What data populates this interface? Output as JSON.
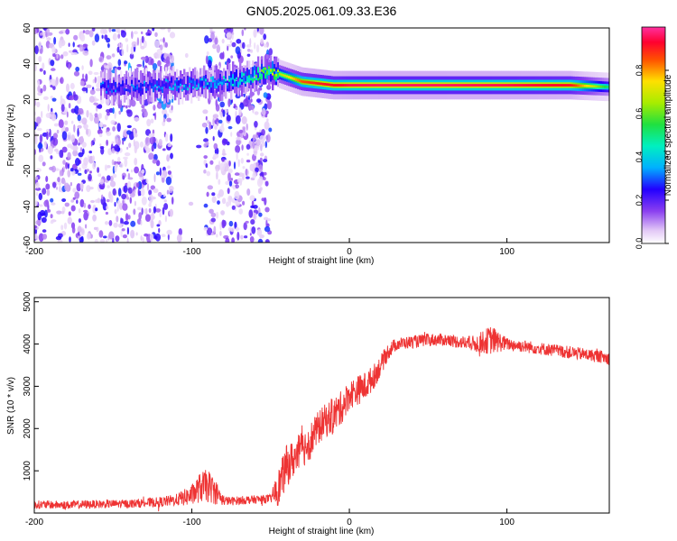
{
  "title": "GN05.2025.061.09.33.E36",
  "chart_data": [
    {
      "type": "heatmap",
      "xlabel": "Height of straight line (km)",
      "ylabel": "Frequency (Hz)",
      "xlim": [
        -200,
        165
      ],
      "ylim": [
        -60,
        60
      ],
      "x_ticks": [
        "-200",
        "-100",
        "0",
        "100"
      ],
      "y_ticks": [
        "-60",
        "-40",
        "-20",
        "0",
        "20",
        "40",
        "60"
      ],
      "colorbar": {
        "label": "Normalized spectral amplitude",
        "ticks": [
          "0.0",
          "0.2",
          "0.4",
          "0.6",
          "0.8"
        ],
        "range": [
          0,
          1
        ]
      },
      "ridge": {
        "x": [
          -155,
          -140,
          -120,
          -100,
          -80,
          -65,
          -55,
          -50,
          -40,
          -30,
          -20,
          -10,
          0,
          20,
          60,
          100,
          140,
          165
        ],
        "y": [
          27,
          27,
          28,
          28,
          30,
          32,
          35,
          36,
          33,
          30,
          29,
          28,
          28,
          28,
          28,
          28,
          28,
          27
        ],
        "amplitude": [
          0.22,
          0.24,
          0.26,
          0.3,
          0.34,
          0.4,
          0.55,
          0.6,
          0.7,
          0.85,
          0.9,
          0.92,
          0.95,
          0.96,
          0.96,
          0.95,
          0.92,
          0.5
        ]
      }
    },
    {
      "type": "line",
      "xlabel": "Height of straight line (km)",
      "ylabel": "SNR (10 * v/v)",
      "xlim": [
        -200,
        165
      ],
      "ylim": [
        0,
        5100
      ],
      "x_ticks": [
        "-200",
        "-100",
        "0",
        "100"
      ],
      "y_ticks": [
        "1000",
        "2000",
        "3000",
        "4000",
        "5000"
      ],
      "series": [
        {
          "color": "#ee3333",
          "x": [
            -200,
            -180,
            -160,
            -140,
            -120,
            -110,
            -100,
            -95,
            -90,
            -85,
            -80,
            -75,
            -70,
            -60,
            -55,
            -50,
            -45,
            -40,
            -35,
            -30,
            -25,
            -20,
            -15,
            -10,
            -5,
            0,
            5,
            10,
            15,
            20,
            25,
            30,
            40,
            50,
            60,
            70,
            80,
            90,
            100,
            110,
            120,
            130,
            140,
            150,
            160,
            165
          ],
          "y": [
            200,
            190,
            210,
            220,
            260,
            310,
            420,
            600,
            650,
            500,
            300,
            280,
            300,
            320,
            330,
            340,
            600,
            1100,
            1300,
            1500,
            1700,
            2000,
            2200,
            2300,
            2500,
            2800,
            2900,
            3000,
            3200,
            3500,
            3850,
            4000,
            4050,
            4100,
            4100,
            4050,
            4000,
            4100,
            4000,
            3950,
            3900,
            3850,
            3800,
            3750,
            3700,
            3650
          ],
          "noise": [
            100,
            100,
            100,
            100,
            120,
            140,
            250,
            350,
            400,
            300,
            120,
            100,
            100,
            100,
            100,
            100,
            450,
            500,
            450,
            450,
            450,
            400,
            400,
            450,
            400,
            350,
            350,
            350,
            300,
            250,
            200,
            150,
            150,
            150,
            150,
            150,
            200,
            350,
            150,
            150,
            150,
            150,
            150,
            150,
            150,
            150
          ]
        }
      ]
    }
  ]
}
